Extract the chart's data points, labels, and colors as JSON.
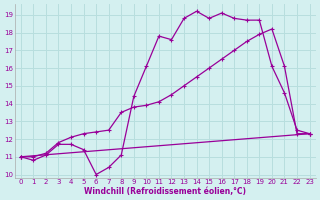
{
  "xlabel": "Windchill (Refroidissement éolien,°C)",
  "bg_color": "#d4f0f0",
  "grid_color": "#b8dede",
  "line_color": "#990099",
  "xlim": [
    -0.5,
    23.5
  ],
  "ylim": [
    9.8,
    19.6
  ],
  "yticks": [
    10,
    11,
    12,
    13,
    14,
    15,
    16,
    17,
    18,
    19
  ],
  "xticks": [
    0,
    1,
    2,
    3,
    4,
    5,
    6,
    7,
    8,
    9,
    10,
    11,
    12,
    13,
    14,
    15,
    16,
    17,
    18,
    19,
    20,
    21,
    22,
    23
  ],
  "line1_x": [
    0,
    1,
    2,
    3,
    4,
    5,
    6,
    7,
    8,
    9,
    10,
    11,
    12,
    13,
    14,
    15,
    16,
    17,
    18,
    19,
    20,
    21,
    22,
    23
  ],
  "line1_y": [
    11.0,
    10.8,
    11.1,
    11.7,
    11.7,
    11.4,
    10.0,
    10.4,
    11.1,
    14.4,
    16.1,
    17.8,
    17.6,
    18.8,
    19.2,
    18.8,
    19.1,
    18.8,
    18.7,
    18.7,
    16.1,
    14.6,
    12.5,
    12.3
  ],
  "line2_x": [
    0,
    1,
    2,
    3,
    4,
    5,
    6,
    7,
    8,
    9,
    10,
    11,
    12,
    13,
    14,
    15,
    16,
    17,
    18,
    19,
    20,
    21,
    22,
    23
  ],
  "line2_y": [
    11.0,
    11.0,
    11.2,
    11.8,
    12.1,
    12.3,
    12.4,
    12.5,
    13.5,
    13.8,
    13.9,
    14.1,
    14.5,
    15.0,
    15.5,
    16.0,
    16.5,
    17.0,
    17.5,
    17.9,
    18.2,
    16.1,
    12.3,
    12.3
  ],
  "line3_x": [
    0,
    23
  ],
  "line3_y": [
    11.0,
    12.3
  ]
}
